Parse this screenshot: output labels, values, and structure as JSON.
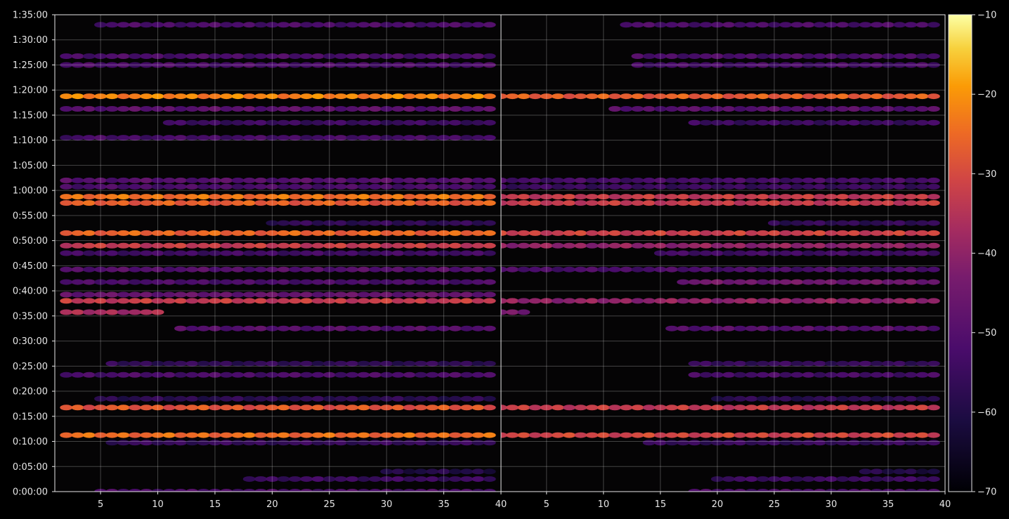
{
  "chart_data": {
    "type": "heatmap",
    "title": "",
    "xlabel": "",
    "ylabel": "",
    "grid": true,
    "background": "#000000",
    "colormap": "inferno",
    "color_range": [
      -70,
      -10
    ],
    "colorbar": {
      "position": "right",
      "ticks": [
        "−70",
        "−60",
        "−50",
        "−40",
        "−30",
        "−20",
        "−10"
      ],
      "tick_values": [
        -70,
        -60,
        -50,
        -40,
        -30,
        -20,
        -10
      ]
    },
    "x_range": [
      1,
      40
    ],
    "y_range_seconds": [
      0,
      5700
    ],
    "y_ticks": [
      "0:00:00",
      "0:05:00",
      "0:10:00",
      "0:15:00",
      "0:20:00",
      "0:25:00",
      "0:30:00",
      "0:35:00",
      "0:40:00",
      "0:45:00",
      "0:50:00",
      "0:55:00",
      "1:00:00",
      "1:05:00",
      "1:10:00",
      "1:15:00",
      "1:20:00",
      "1:25:00",
      "1:30:00",
      "1:35:00"
    ],
    "panels": [
      {
        "name": "left",
        "x_ticks": [
          "5",
          "10",
          "15",
          "20",
          "25",
          "30",
          "35",
          "40"
        ],
        "x_tick_values": [
          5,
          10,
          15,
          20,
          25,
          30,
          35,
          40
        ],
        "bands": [
          {
            "y_time": "1:18:45",
            "x_from": 2,
            "x_to": 39,
            "level": -22
          },
          {
            "y_time": "0:58:45",
            "x_from": 2,
            "x_to": 39,
            "level": -24
          },
          {
            "y_time": "0:57:30",
            "x_from": 2,
            "x_to": 39,
            "level": -27
          },
          {
            "y_time": "0:51:30",
            "x_from": 2,
            "x_to": 39,
            "level": -26
          },
          {
            "y_time": "0:49:00",
            "x_from": 2,
            "x_to": 39,
            "level": -33
          },
          {
            "y_time": "0:38:00",
            "x_from": 2,
            "x_to": 39,
            "level": -33
          },
          {
            "y_time": "0:39:15",
            "x_from": 2,
            "x_to": 39,
            "level": -47
          },
          {
            "y_time": "0:35:45",
            "x_from": 2,
            "x_to": 10,
            "level": -37
          },
          {
            "y_time": "0:16:45",
            "x_from": 2,
            "x_to": 39,
            "level": -28
          },
          {
            "y_time": "0:11:15",
            "x_from": 2,
            "x_to": 39,
            "level": -25
          },
          {
            "y_time": "1:16:15",
            "x_from": 2,
            "x_to": 39,
            "level": -49
          },
          {
            "y_time": "1:10:30",
            "x_from": 2,
            "x_to": 39,
            "level": -53
          },
          {
            "y_time": "1:02:00",
            "x_from": 2,
            "x_to": 39,
            "level": -50
          },
          {
            "y_time": "1:00:45",
            "x_from": 2,
            "x_to": 39,
            "level": -52
          },
          {
            "y_time": "0:47:30",
            "x_from": 2,
            "x_to": 39,
            "level": -54
          },
          {
            "y_time": "0:44:15",
            "x_from": 2,
            "x_to": 39,
            "level": -50
          },
          {
            "y_time": "0:41:45",
            "x_from": 2,
            "x_to": 39,
            "level": -52
          },
          {
            "y_time": "0:23:15",
            "x_from": 2,
            "x_to": 39,
            "level": -52
          },
          {
            "y_time": "0:32:30",
            "x_from": 12,
            "x_to": 39,
            "level": -50
          },
          {
            "y_time": "0:09:45",
            "x_from": 6,
            "x_to": 39,
            "level": -56
          },
          {
            "y_time": "0:00:00",
            "x_from": 5,
            "x_to": 39,
            "level": -52
          },
          {
            "y_time": "0:02:30",
            "x_from": 18,
            "x_to": 39,
            "level": -55
          },
          {
            "y_time": "1:26:45",
            "x_from": 2,
            "x_to": 39,
            "level": -52
          },
          {
            "y_time": "1:25:00",
            "x_from": 2,
            "x_to": 39,
            "level": -52
          },
          {
            "y_time": "1:33:00",
            "x_from": 5,
            "x_to": 39,
            "level": -52
          },
          {
            "y_time": "1:13:30",
            "x_from": 11,
            "x_to": 39,
            "level": -55
          },
          {
            "y_time": "0:53:30",
            "x_from": 20,
            "x_to": 39,
            "level": -57
          },
          {
            "y_time": "0:25:30",
            "x_from": 6,
            "x_to": 39,
            "level": -57
          },
          {
            "y_time": "0:18:30",
            "x_from": 5,
            "x_to": 39,
            "level": -58
          },
          {
            "y_time": "0:04:00",
            "x_from": 30,
            "x_to": 39,
            "level": -60
          }
        ]
      },
      {
        "name": "right",
        "x_ticks": [
          "5",
          "10",
          "15",
          "20",
          "25",
          "30",
          "35",
          "40"
        ],
        "x_tick_values": [
          5,
          10,
          15,
          20,
          25,
          30,
          35,
          40
        ],
        "bands": [
          {
            "y_time": "1:18:45",
            "x_from": 1,
            "x_to": 39,
            "level": -27
          },
          {
            "y_time": "0:58:45",
            "x_from": 1,
            "x_to": 39,
            "level": -33
          },
          {
            "y_time": "0:57:30",
            "x_from": 1,
            "x_to": 39,
            "level": -33
          },
          {
            "y_time": "0:51:30",
            "x_from": 1,
            "x_to": 39,
            "level": -32
          },
          {
            "y_time": "0:49:00",
            "x_from": 1,
            "x_to": 39,
            "level": -40
          },
          {
            "y_time": "0:38:00",
            "x_from": 1,
            "x_to": 39,
            "level": -40
          },
          {
            "y_time": "0:35:45",
            "x_from": 1,
            "x_to": 3,
            "level": -44
          },
          {
            "y_time": "0:16:45",
            "x_from": 1,
            "x_to": 39,
            "level": -33
          },
          {
            "y_time": "0:11:15",
            "x_from": 1,
            "x_to": 39,
            "level": -31
          },
          {
            "y_time": "1:16:15",
            "x_from": 11,
            "x_to": 39,
            "level": -50
          },
          {
            "y_time": "1:02:00",
            "x_from": 1,
            "x_to": 39,
            "level": -53
          },
          {
            "y_time": "1:00:45",
            "x_from": 1,
            "x_to": 39,
            "level": -55
          },
          {
            "y_time": "0:44:15",
            "x_from": 1,
            "x_to": 39,
            "level": -52
          },
          {
            "y_time": "0:41:45",
            "x_from": 17,
            "x_to": 39,
            "level": -45
          },
          {
            "y_time": "0:47:30",
            "x_from": 15,
            "x_to": 39,
            "level": -54
          },
          {
            "y_time": "0:32:30",
            "x_from": 16,
            "x_to": 39,
            "level": -50
          },
          {
            "y_time": "0:23:15",
            "x_from": 18,
            "x_to": 39,
            "level": -53
          },
          {
            "y_time": "0:09:45",
            "x_from": 14,
            "x_to": 39,
            "level": -56
          },
          {
            "y_time": "0:00:00",
            "x_from": 18,
            "x_to": 39,
            "level": -52
          },
          {
            "y_time": "0:02:30",
            "x_from": 20,
            "x_to": 39,
            "level": -55
          },
          {
            "y_time": "1:26:45",
            "x_from": 13,
            "x_to": 39,
            "level": -52
          },
          {
            "y_time": "1:25:00",
            "x_from": 13,
            "x_to": 39,
            "level": -53
          },
          {
            "y_time": "1:33:00",
            "x_from": 12,
            "x_to": 39,
            "level": -52
          },
          {
            "y_time": "1:13:30",
            "x_from": 18,
            "x_to": 39,
            "level": -55
          },
          {
            "y_time": "0:53:30",
            "x_from": 25,
            "x_to": 39,
            "level": -57
          },
          {
            "y_time": "0:25:30",
            "x_from": 18,
            "x_to": 39,
            "level": -56
          },
          {
            "y_time": "0:18:30",
            "x_from": 20,
            "x_to": 39,
            "level": -58
          },
          {
            "y_time": "0:04:00",
            "x_from": 33,
            "x_to": 39,
            "level": -60
          }
        ]
      }
    ]
  }
}
